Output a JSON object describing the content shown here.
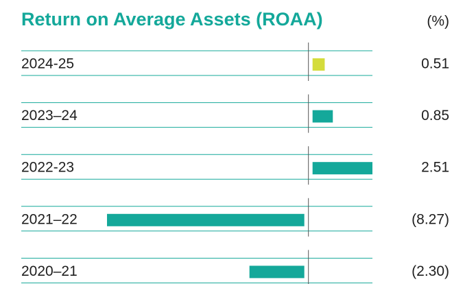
{
  "chart_data": {
    "type": "bar",
    "orientation": "horizontal",
    "title": "Return on Average Assets (ROAA)",
    "unit": "(%)",
    "categories": [
      "2024-25",
      "2023–24",
      "2022-23",
      "2021–22",
      "2020–21"
    ],
    "values": [
      0.51,
      0.85,
      2.51,
      -8.27,
      -2.3
    ],
    "value_labels": [
      "0.51",
      "0.85",
      "2.51",
      "(8.27)",
      "(2.30)"
    ],
    "colors": [
      "#d4dc3c",
      "#14a89a",
      "#14a89a",
      "#14a89a",
      "#14a89a"
    ]
  }
}
